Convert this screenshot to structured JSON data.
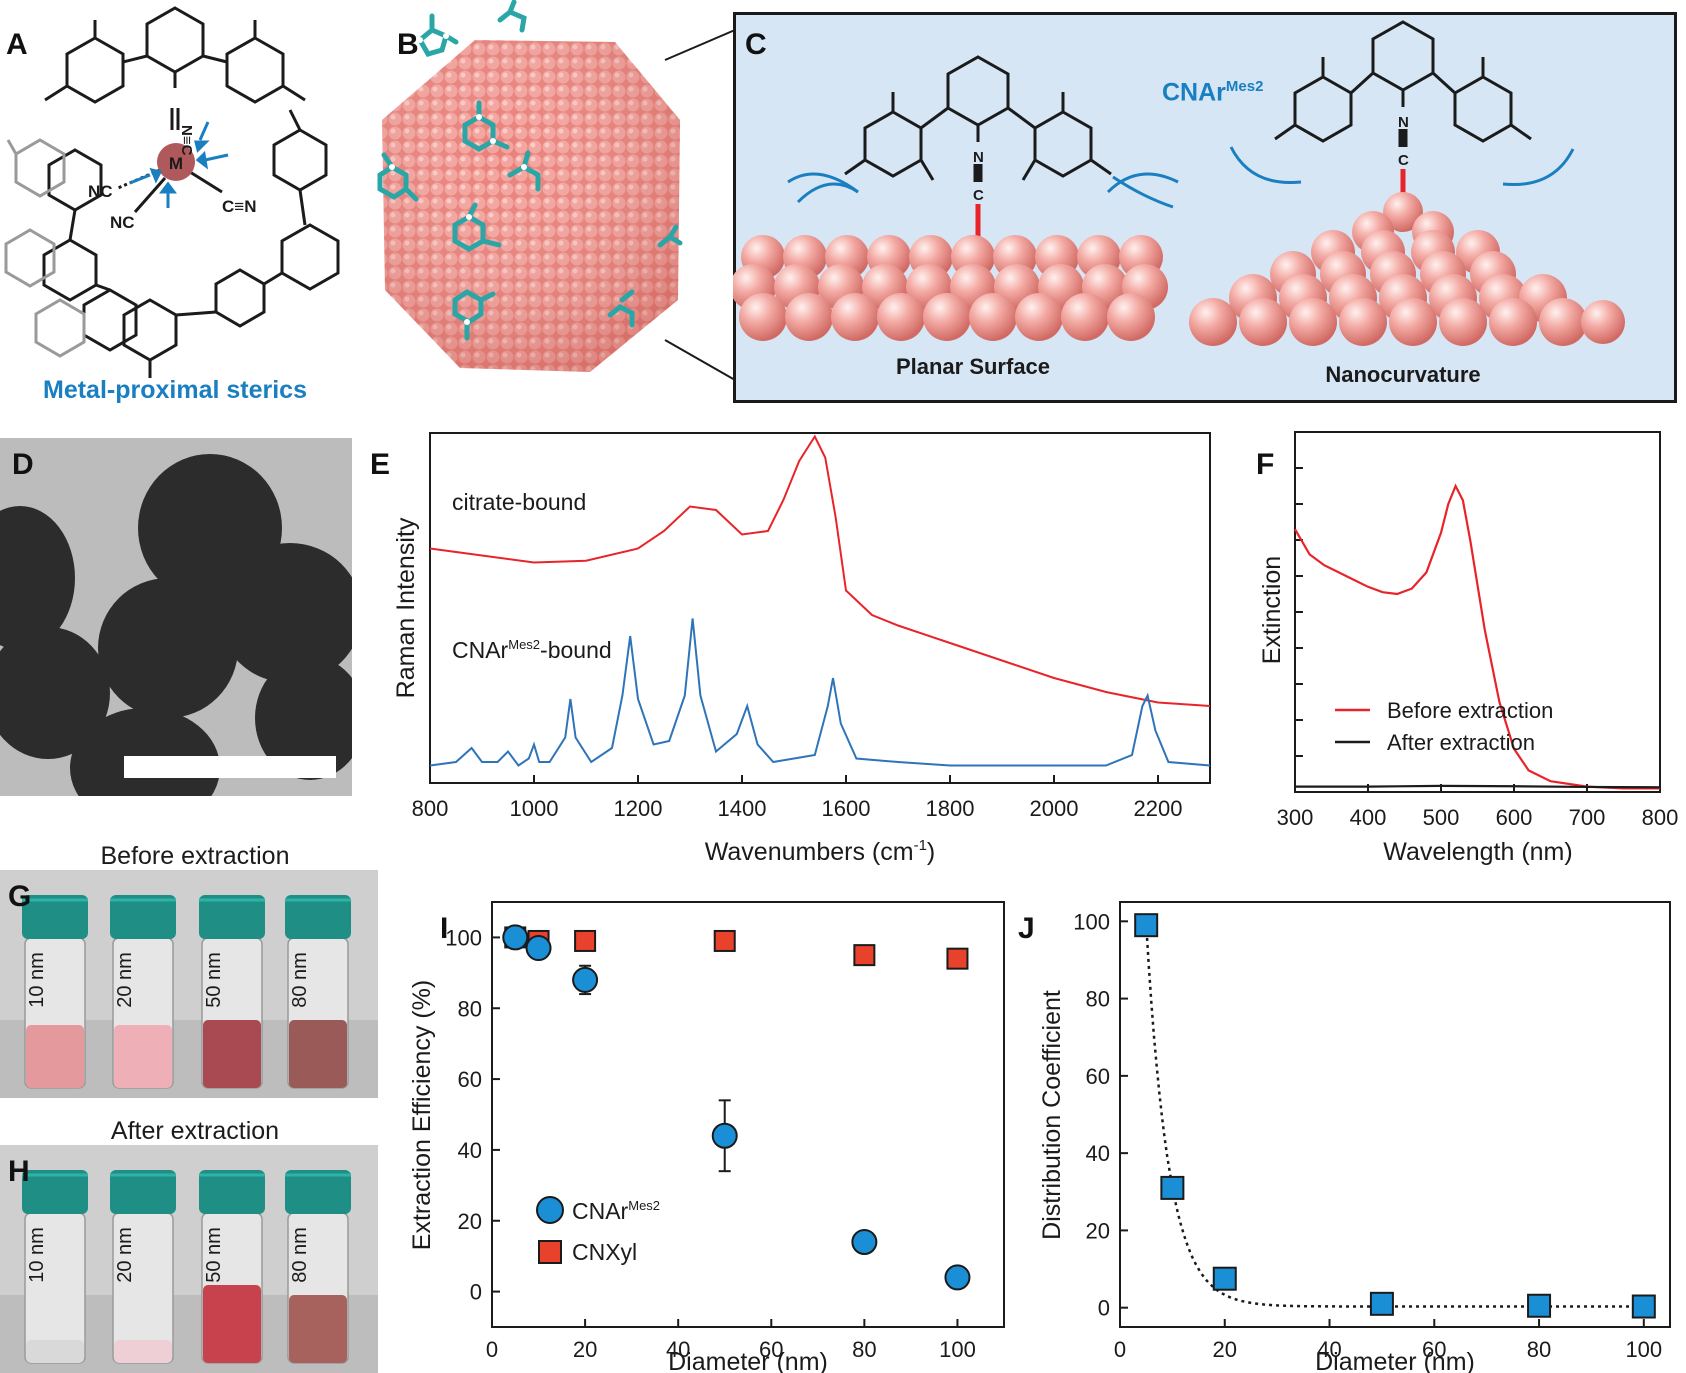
{
  "panels": {
    "A": {
      "letter": "A",
      "metal_label": "M",
      "nc1": "NC",
      "nc2": "NC",
      "cn": "C≡N",
      "cn_top": "N≡C",
      "caption": "Metal-proximal sterics"
    },
    "B": {
      "letter": "B"
    },
    "C": {
      "letter": "C",
      "ligand_name": "CNAr",
      "ligand_sup": "Mes2",
      "left_caption": "Planar Surface",
      "right_caption": "Nanocurvature",
      "atom_n": "N",
      "atom_c": "C"
    },
    "D": {
      "letter": "D"
    },
    "E": {
      "letter": "E"
    },
    "F": {
      "letter": "F"
    },
    "G": {
      "letter": "G",
      "title": "Before extraction",
      "vials": [
        "10 nm",
        "20 nm",
        "50 nm",
        "80 nm"
      ]
    },
    "H": {
      "letter": "H",
      "title": "After extraction",
      "vials": [
        "10 nm",
        "20 nm",
        "50 nm",
        "80 nm"
      ]
    },
    "I": {
      "letter": "I"
    },
    "J": {
      "letter": "J"
    }
  },
  "colors": {
    "blue_accent": "#1a7fc1",
    "panel_bg": "#d6e6f5",
    "nanoparticle": "#f09a95",
    "raman_red": "#e8242a",
    "raman_blue": "#2f74b8",
    "marker_blue": "#1a8fd6",
    "marker_red": "#e8412c",
    "ligand_teal": "#2aa6a6"
  },
  "chart_data": [
    {
      "id": "E",
      "type": "line",
      "xlabel_main": "Wavenumbers (cm",
      "xlabel_sup": "-1",
      "xlabel_end": ")",
      "ylabel": "Raman Intensity",
      "xlim": [
        800,
        2300
      ],
      "xticks": [
        "800",
        "1000",
        "1200",
        "1400",
        "1600",
        "1800",
        "2000",
        "2200"
      ],
      "annotations": {
        "top": "citrate-bound",
        "bottom_main": "CNAr",
        "bottom_sup": "Mes2",
        "bottom_end": "-bound"
      },
      "series": [
        {
          "color": "#e8242a",
          "x": [
            800,
            900,
            1000,
            1100,
            1200,
            1250,
            1300,
            1350,
            1400,
            1450,
            1480,
            1510,
            1540,
            1560,
            1580,
            1600,
            1650,
            1700,
            1800,
            1900,
            2000,
            2100,
            2200,
            2300
          ],
          "y": [
            0.67,
            0.65,
            0.63,
            0.635,
            0.67,
            0.72,
            0.79,
            0.78,
            0.71,
            0.72,
            0.81,
            0.92,
            0.99,
            0.93,
            0.76,
            0.55,
            0.48,
            0.45,
            0.4,
            0.35,
            0.3,
            0.26,
            0.23,
            0.22
          ]
        },
        {
          "color": "#2f74b8",
          "x": [
            800,
            850,
            880,
            900,
            930,
            950,
            970,
            990,
            1000,
            1010,
            1030,
            1060,
            1070,
            1080,
            1110,
            1150,
            1170,
            1185,
            1200,
            1230,
            1260,
            1290,
            1305,
            1320,
            1350,
            1390,
            1410,
            1430,
            1460,
            1500,
            1540,
            1565,
            1575,
            1590,
            1620,
            1700,
            1800,
            1900,
            2000,
            2100,
            2150,
            2170,
            2180,
            2195,
            2220,
            2300
          ],
          "y": [
            0.05,
            0.06,
            0.1,
            0.06,
            0.06,
            0.09,
            0.05,
            0.07,
            0.11,
            0.06,
            0.06,
            0.13,
            0.24,
            0.13,
            0.06,
            0.1,
            0.25,
            0.42,
            0.24,
            0.11,
            0.12,
            0.25,
            0.47,
            0.25,
            0.09,
            0.14,
            0.22,
            0.11,
            0.06,
            0.07,
            0.08,
            0.22,
            0.3,
            0.17,
            0.07,
            0.06,
            0.05,
            0.05,
            0.05,
            0.05,
            0.08,
            0.22,
            0.25,
            0.15,
            0.06,
            0.05
          ]
        }
      ]
    },
    {
      "id": "F",
      "type": "line",
      "xlabel": "Wavelength (nm)",
      "ylabel": "Extinction",
      "xlim": [
        300,
        800
      ],
      "xticks": [
        "300",
        "400",
        "500",
        "600",
        "700",
        "800"
      ],
      "series": [
        {
          "name": "Before extraction",
          "color": "#e8242a",
          "x": [
            300,
            320,
            340,
            360,
            380,
            400,
            420,
            440,
            460,
            480,
            500,
            510,
            520,
            530,
            540,
            560,
            580,
            600,
            620,
            650,
            700,
            750,
            800
          ],
          "y": [
            0.73,
            0.66,
            0.63,
            0.61,
            0.59,
            0.57,
            0.555,
            0.55,
            0.565,
            0.61,
            0.72,
            0.8,
            0.85,
            0.81,
            0.7,
            0.45,
            0.25,
            0.12,
            0.06,
            0.03,
            0.015,
            0.01,
            0.01
          ]
        },
        {
          "name": "After extraction",
          "color": "#1b1b1b",
          "x": [
            300,
            400,
            500,
            600,
            700,
            800
          ],
          "y": [
            0.015,
            0.015,
            0.017,
            0.016,
            0.014,
            0.013
          ]
        }
      ]
    },
    {
      "id": "I",
      "type": "scatter",
      "xlabel": "Diameter (nm)",
      "ylabel": "Extraction Efficiency (%)",
      "xlim": [
        0,
        110
      ],
      "ylim": [
        -10,
        110
      ],
      "xticks": [
        "0",
        "20",
        "40",
        "60",
        "80",
        "100"
      ],
      "yticks": [
        "0",
        "20",
        "40",
        "60",
        "80",
        "100"
      ],
      "series": [
        {
          "name_main": "CNAr",
          "name_sup": "Mes2",
          "marker": "circle",
          "color": "#1a8fd6",
          "x": [
            5,
            10,
            20,
            50,
            80,
            100
          ],
          "y": [
            100,
            97,
            88,
            44,
            14,
            4
          ],
          "err": [
            1,
            2,
            4,
            10,
            2,
            1.5
          ]
        },
        {
          "name_main": "CNXyl",
          "name_sup": "",
          "marker": "square",
          "color": "#e8412c",
          "x": [
            5,
            10,
            20,
            50,
            80,
            100
          ],
          "y": [
            100,
            99,
            99,
            99,
            95,
            94
          ],
          "err": [
            0.5,
            0.5,
            1,
            1,
            1,
            1
          ]
        }
      ]
    },
    {
      "id": "J",
      "type": "scatter",
      "xlabel": "Diameter (nm)",
      "ylabel": "Distribution Coefficient",
      "xlim": [
        0,
        105
      ],
      "ylim": [
        -5,
        105
      ],
      "xticks": [
        "0",
        "20",
        "40",
        "60",
        "80",
        "100"
      ],
      "yticks": [
        "0",
        "20",
        "40",
        "60",
        "80",
        "100"
      ],
      "series": [
        {
          "marker": "square",
          "color": "#1a8fd6",
          "x": [
            5,
            10,
            20,
            50,
            80,
            100
          ],
          "y": [
            99,
            31,
            7.5,
            1,
            0.5,
            0.3
          ]
        }
      ]
    }
  ]
}
